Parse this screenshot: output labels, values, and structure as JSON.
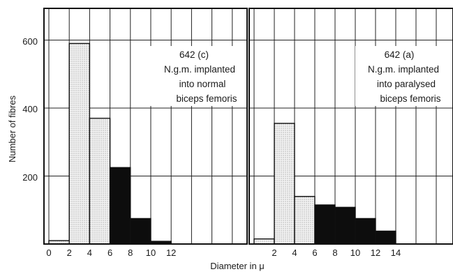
{
  "chart_data": {
    "type": "bar",
    "ylabel": "Number of fibres",
    "xlabel": "Diameter in μ",
    "ylim": [
      0,
      700
    ],
    "y_ticks": [
      "200",
      "400",
      "600"
    ],
    "x_ticks": [
      "0",
      "2",
      "4",
      "6",
      "8",
      "10",
      "12",
      "14"
    ],
    "panels": [
      {
        "label": "642 (c)",
        "annotation_lines": [
          "642 (c)",
          "N.g.m. implanted",
          "into normal",
          "biceps femoris"
        ],
        "bins": [
          {
            "from": 0,
            "to": 2,
            "value": 10,
            "shade": "light"
          },
          {
            "from": 2,
            "to": 4,
            "value": 590,
            "shade": "light"
          },
          {
            "from": 4,
            "to": 6,
            "value": 370,
            "shade": "light"
          },
          {
            "from": 6,
            "to": 8,
            "value": 225,
            "shade": "dark"
          },
          {
            "from": 8,
            "to": 10,
            "value": 75,
            "shade": "dark"
          },
          {
            "from": 10,
            "to": 12,
            "value": 8,
            "shade": "dark"
          }
        ],
        "x_tick_labels": [
          "0",
          "2",
          "4",
          "6",
          "8",
          "10",
          "12"
        ]
      },
      {
        "label": "642 (a)",
        "annotation_lines": [
          "642 (a)",
          "N.g.m. implanted",
          "into paralysed",
          "biceps femoris"
        ],
        "bins": [
          {
            "from": 0,
            "to": 2,
            "value": 15,
            "shade": "light"
          },
          {
            "from": 2,
            "to": 4,
            "value": 355,
            "shade": "light"
          },
          {
            "from": 4,
            "to": 6,
            "value": 140,
            "shade": "light"
          },
          {
            "from": 6,
            "to": 8,
            "value": 115,
            "shade": "dark"
          },
          {
            "from": 8,
            "to": 10,
            "value": 108,
            "shade": "dark"
          },
          {
            "from": 10,
            "to": 12,
            "value": 75,
            "shade": "dark"
          },
          {
            "from": 12,
            "to": 14,
            "value": 38,
            "shade": "dark"
          }
        ],
        "x_tick_labels": [
          "2",
          "4",
          "6",
          "8",
          "10",
          "12",
          "14"
        ]
      }
    ]
  }
}
